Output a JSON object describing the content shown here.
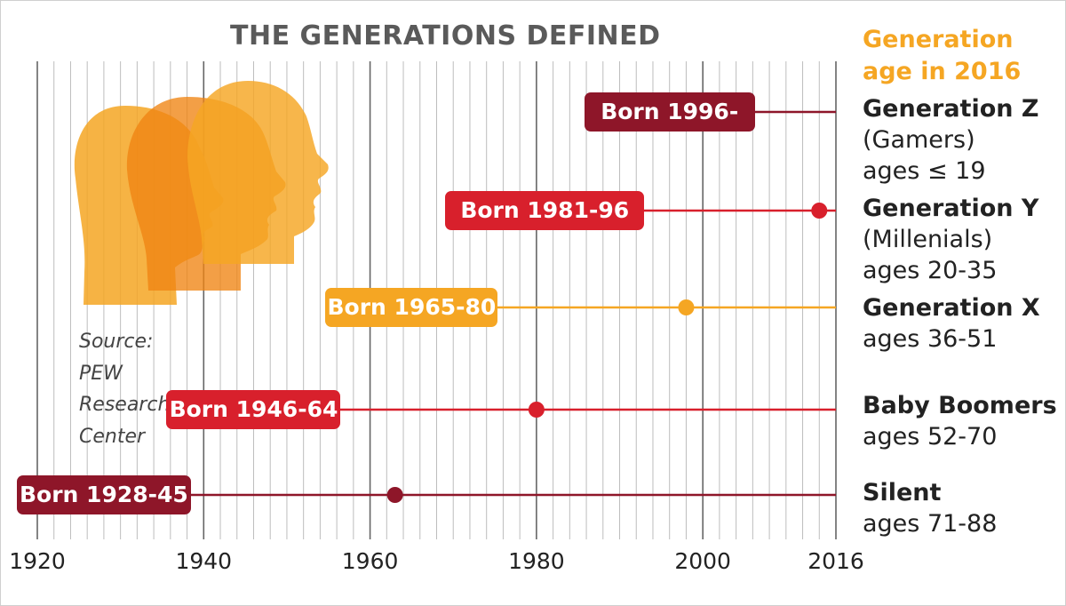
{
  "colors": {
    "dark_red": "#8e1629",
    "red": "#d8202c",
    "orange": "#f5a623",
    "grid_major": "#666666",
    "grid_minor": "#bdbdbd"
  },
  "source": [
    "Source:",
    "PEW",
    "Research",
    "Center"
  ],
  "chart_data": {
    "type": "timeline",
    "title": "THE GENERATIONS DEFINED",
    "legend_title": [
      "Generation",
      "age in 2016"
    ],
    "x_ticks": [
      1920,
      1940,
      1960,
      1980,
      2000,
      2016
    ],
    "x_tick_labels": [
      "1920",
      "1940",
      "1960",
      "1980",
      "2000",
      "2016"
    ],
    "xlim": [
      1920,
      2016
    ],
    "minor_grid_step_years": 2,
    "generations": [
      {
        "label": "Born 1996-",
        "start": 1996,
        "end": 2016,
        "midpoint": null,
        "color": "#8e1629",
        "name": "Generation Z",
        "details": [
          "(Gamers)",
          "ages ≤ 19"
        ]
      },
      {
        "label": "Born 1981-96",
        "start": 1981,
        "end": 2016,
        "midpoint": 2014,
        "color": "#d8202c",
        "name": "Generation Y",
        "details": [
          "(Millenials)",
          "ages 20-35"
        ]
      },
      {
        "label": "Born 1965-80",
        "start": 1965,
        "end": 2016,
        "midpoint": 1998,
        "color": "#f5a623",
        "name": "Generation X",
        "details": [
          "ages 36-51"
        ]
      },
      {
        "label": "Born 1946-64",
        "start": 1946,
        "end": 2016,
        "midpoint": 1980,
        "color": "#d8202c",
        "name": "Baby Boomers",
        "details": [
          "ages 52-70"
        ]
      },
      {
        "label": "Born 1928-45",
        "start": 1928,
        "end": 2016,
        "midpoint": 1963,
        "color": "#8e1629",
        "name": "Silent",
        "details": [
          "ages 71-88"
        ]
      }
    ]
  }
}
